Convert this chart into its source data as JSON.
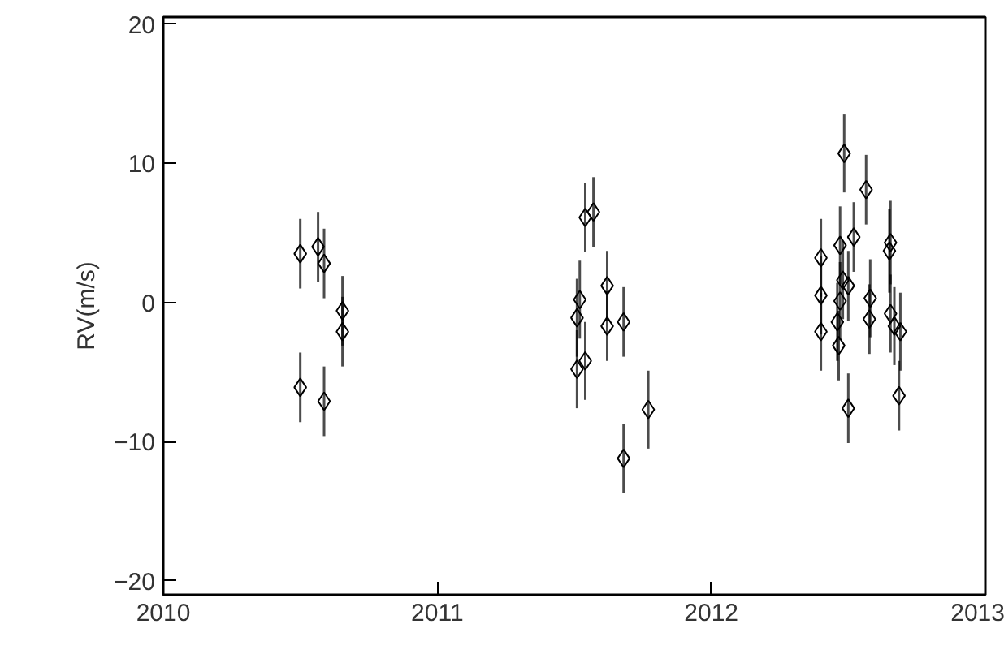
{
  "chart_data": {
    "type": "scatter",
    "ylabel": "RV(m/s)",
    "marker": "diamond",
    "grid": false,
    "xlim": [
      2010,
      2013
    ],
    "xticks": [
      2010,
      2011,
      2012,
      2013
    ],
    "ylim": [
      -21,
      20.5
    ],
    "yticks": [
      -20,
      -10,
      0,
      10,
      20
    ],
    "series": [
      {
        "color": "#000000",
        "x": [
          2010.5,
          2010.5,
          2010.565,
          2010.587,
          2010.587,
          2010.654,
          2010.654,
          2011.52,
          2011.51,
          2011.51,
          2011.54,
          2011.54,
          2011.57,
          2011.62,
          2011.62,
          2011.68,
          2011.68,
          2011.77,
          2012.4,
          2012.4,
          2012.4,
          2012.47,
          2012.48,
          2012.46,
          2012.465,
          2012.47,
          2012.485,
          2012.5,
          2012.5,
          2012.52,
          2012.565,
          2012.58,
          2012.577,
          2012.654,
          2012.65,
          2012.654,
          2012.668,
          2012.69,
          2012.685
        ],
        "values": [
          3.5,
          -6.1,
          4.0,
          2.8,
          -7.1,
          -0.6,
          -2.1,
          0.2,
          -1.1,
          -4.8,
          -4.2,
          6.1,
          6.5,
          1.2,
          -1.7,
          -1.4,
          -11.2,
          -7.7,
          3.2,
          0.5,
          -2.1,
          4.1,
          1.6,
          -1.4,
          -3.1,
          0.1,
          10.7,
          1.2,
          -7.6,
          4.7,
          8.1,
          0.3,
          -1.2,
          4.3,
          3.7,
          -0.8,
          -1.7,
          -2.1,
          -6.7
        ],
        "errors": [
          2.5,
          2.5,
          2.5,
          2.5,
          2.5,
          2.5,
          2.5,
          2.8,
          2.8,
          2.8,
          2.8,
          2.5,
          2.5,
          2.5,
          2.5,
          2.5,
          2.5,
          2.8,
          2.8,
          2.8,
          2.8,
          2.8,
          2.8,
          2.8,
          2.5,
          2.8,
          2.8,
          2.5,
          2.5,
          2.5,
          2.5,
          2.8,
          2.5,
          3.0,
          3.0,
          2.8,
          2.8,
          2.8,
          2.5
        ]
      }
    ]
  }
}
